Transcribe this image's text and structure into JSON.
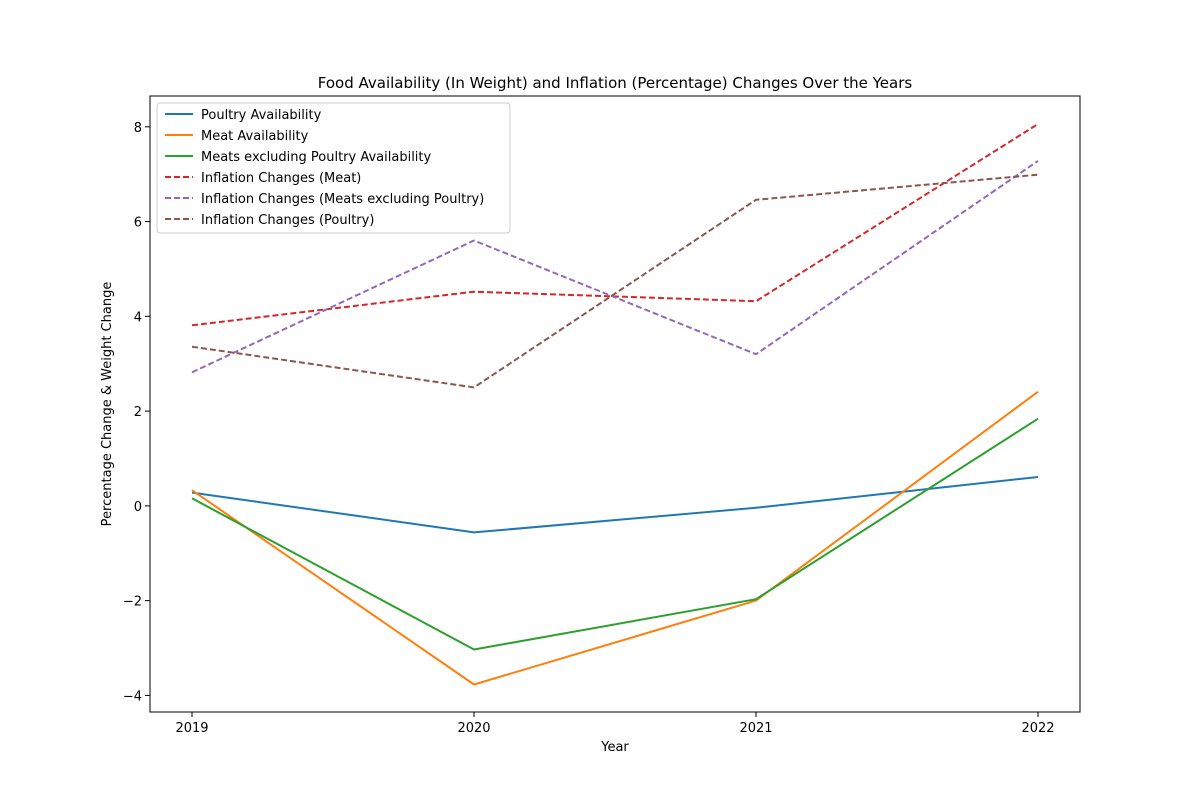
{
  "chart_data": {
    "type": "line",
    "title": "Food Availability (In Weight) and Inflation (Percentage) Changes Over the Years",
    "xlabel": "Year",
    "ylabel": "Percentage Change & Weight Change",
    "x": [
      "2019",
      "2020",
      "2021",
      "2022"
    ],
    "y_ticks": [
      "−4",
      "−2",
      "0",
      "2",
      "4",
      "6",
      "8"
    ],
    "y_tick_values": [
      -4,
      -2,
      0,
      2,
      4,
      6,
      8
    ],
    "ylim": [
      -4.35,
      8.65
    ],
    "grid": false,
    "legend_position": "upper-left",
    "series": [
      {
        "name": "Poultry Availability",
        "values": [
          0.28,
          -0.56,
          -0.04,
          0.61
        ],
        "color": "#1f77b4",
        "dashed": false
      },
      {
        "name": "Meat Availability",
        "values": [
          0.33,
          -3.77,
          -2.0,
          2.41
        ],
        "color": "#ff7f0e",
        "dashed": false
      },
      {
        "name": "Meats excluding Poultry Availability",
        "values": [
          0.16,
          -3.03,
          -1.97,
          1.84
        ],
        "color": "#2ca02c",
        "dashed": false
      },
      {
        "name": "Inflation Changes (Meat)",
        "values": [
          3.81,
          4.52,
          4.32,
          8.06
        ],
        "color": "#d62728",
        "dashed": true
      },
      {
        "name": "Inflation Changes (Meats excluding Poultry)",
        "values": [
          2.82,
          5.6,
          3.2,
          7.28
        ],
        "color": "#9467bd",
        "dashed": true
      },
      {
        "name": "Inflation Changes (Poultry)",
        "values": [
          3.36,
          2.5,
          6.46,
          6.99
        ],
        "color": "#8c564b",
        "dashed": true
      }
    ]
  }
}
